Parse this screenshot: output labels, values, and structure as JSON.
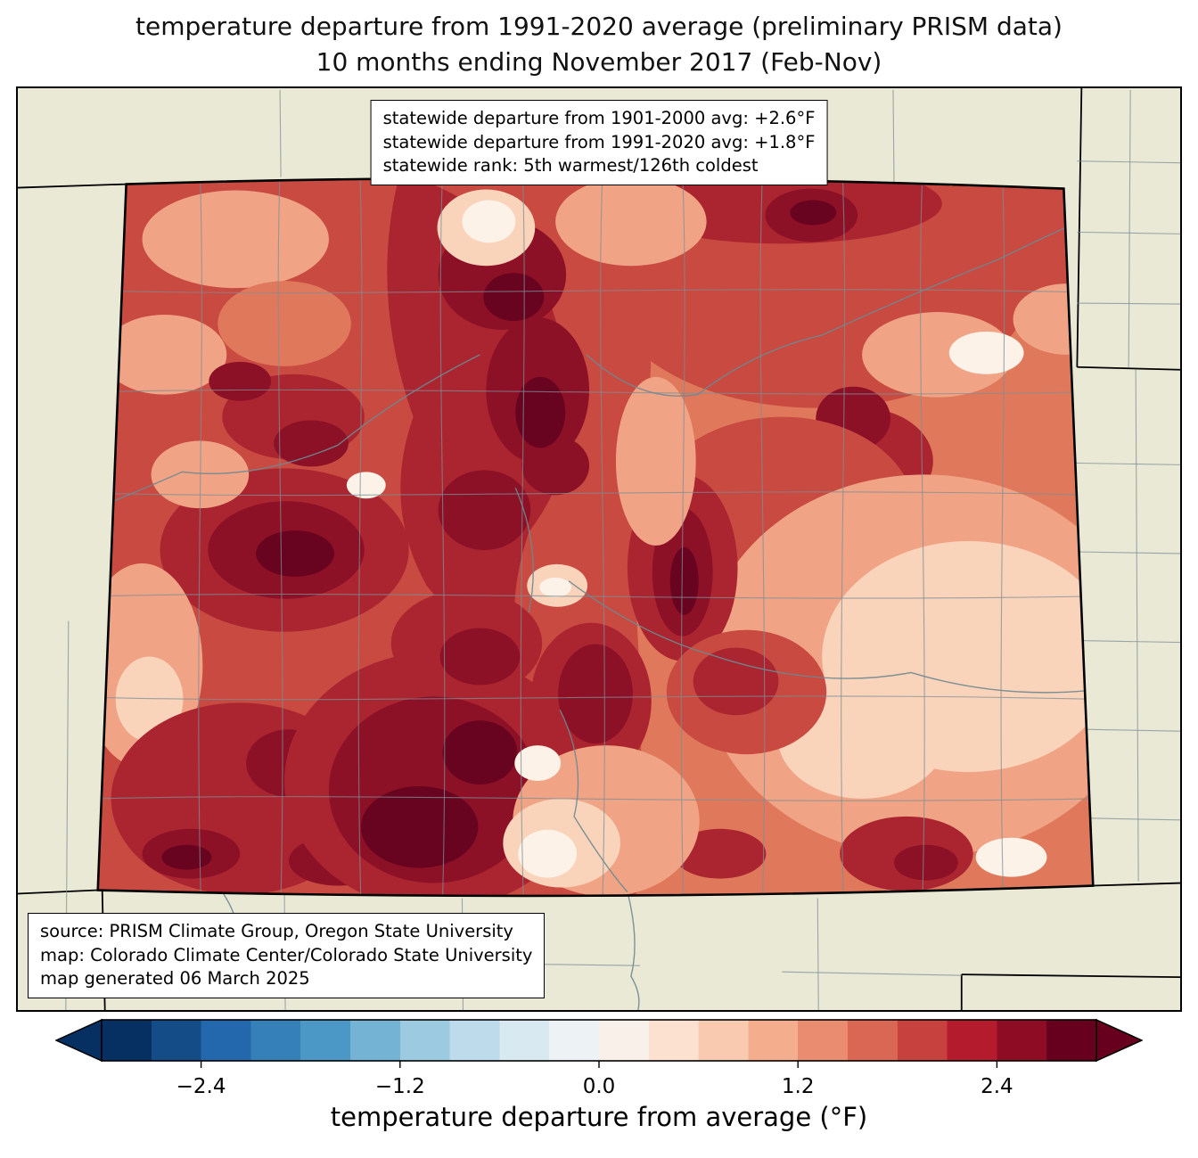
{
  "title": {
    "line1": "temperature departure from 1991-2020 average (preliminary PRISM data)",
    "line2": "10 months ending November 2017 (Feb-Nov)"
  },
  "stats_box": {
    "line1": "statewide departure from 1901-2000 avg: +2.6°F",
    "line2": "statewide departure from 1991-2020 avg: +1.8°F",
    "line3": "statewide rank: 5th warmest/126th coldest"
  },
  "credits_box": {
    "line1": "source: PRISM Climate Group, Oregon State University",
    "line2": "map: Colorado Climate Center/Colorado State University",
    "line3": "map generated 06 March 2025"
  },
  "colorbar": {
    "label": "temperature departure from average (°F)",
    "range": [
      -3.0,
      3.0
    ],
    "segment_step": 0.3,
    "ticks": [
      {
        "label": "−2.4",
        "pos": 10
      },
      {
        "label": "−1.2",
        "pos": 30
      },
      {
        "label": "0.0",
        "pos": 50
      },
      {
        "label": "1.2",
        "pos": 70
      },
      {
        "label": "2.4",
        "pos": 90
      }
    ],
    "colors": [
      "#053061",
      "#144c88",
      "#2368ad",
      "#3580b9",
      "#4b98c6",
      "#75b3d4",
      "#9ccae1",
      "#bddbea",
      "#d9e9f1",
      "#edf2f5",
      "#f9f0ea",
      "#fce1d1",
      "#facab0",
      "#f5ae8d",
      "#e98c70",
      "#d96753",
      "#c7423f",
      "#b41c2d",
      "#8e0d25",
      "#67001f"
    ],
    "left_arrow_color": "#053061",
    "right_arrow_color": "#67001f"
  },
  "palette": {
    "beige": "#e9e9d6",
    "state_border": "#000000",
    "county_line": "#7d8d95",
    "river": "#6e8890",
    "cream": "#fdf2e7",
    "pink": "#fad3bb",
    "salmon": "#f0a485",
    "mid": "#e0795c",
    "red": "#c84a41",
    "dred": "#ab2530",
    "maroon": "#8c1026",
    "deep": "#680320"
  }
}
